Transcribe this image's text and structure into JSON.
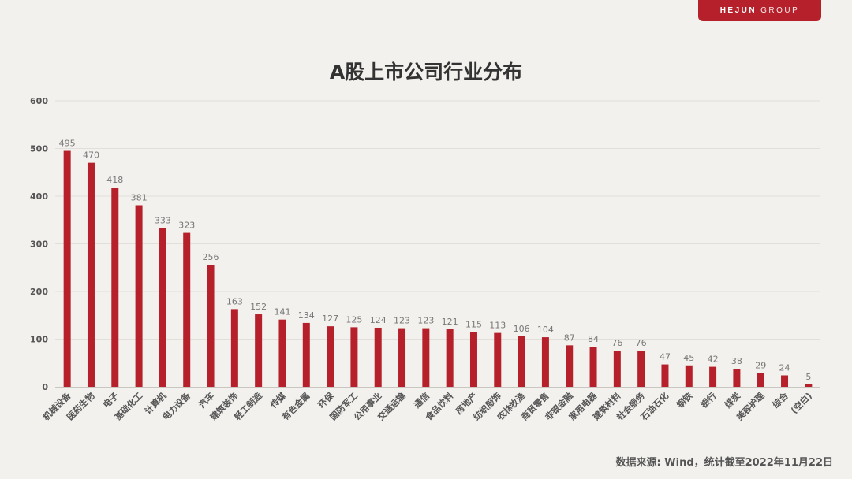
{
  "brand": {
    "name": "HEJUN",
    "suffix": "GROUP",
    "color": "#b5202a"
  },
  "source": "数据来源: Wind，统计截至2022年11月22日",
  "chart_data": {
    "type": "bar",
    "title": "A股上市公司行业分布",
    "xlabel": "",
    "ylabel": "",
    "ylim": [
      0,
      600
    ],
    "yticks": [
      0,
      100,
      200,
      300,
      400,
      500,
      600
    ],
    "grid": true,
    "bar_color": "#b5202a",
    "categories": [
      "机械设备",
      "医药生物",
      "电子",
      "基础化工",
      "计算机",
      "电力设备",
      "汽车",
      "建筑装饰",
      "轻工制造",
      "传媒",
      "有色金属",
      "环保",
      "国防军工",
      "公用事业",
      "交通运输",
      "通信",
      "食品饮料",
      "房地产",
      "纺织服饰",
      "农林牧渔",
      "商贸零售",
      "非银金融",
      "家用电器",
      "建筑材料",
      "社会服务",
      "石油石化",
      "钢铁",
      "银行",
      "煤炭",
      "美容护理",
      "综合",
      "(空白)"
    ],
    "values": [
      495,
      470,
      418,
      381,
      333,
      323,
      256,
      163,
      152,
      141,
      134,
      127,
      125,
      124,
      123,
      123,
      121,
      115,
      113,
      106,
      104,
      87,
      84,
      76,
      76,
      47,
      45,
      42,
      38,
      29,
      24,
      5
    ]
  }
}
